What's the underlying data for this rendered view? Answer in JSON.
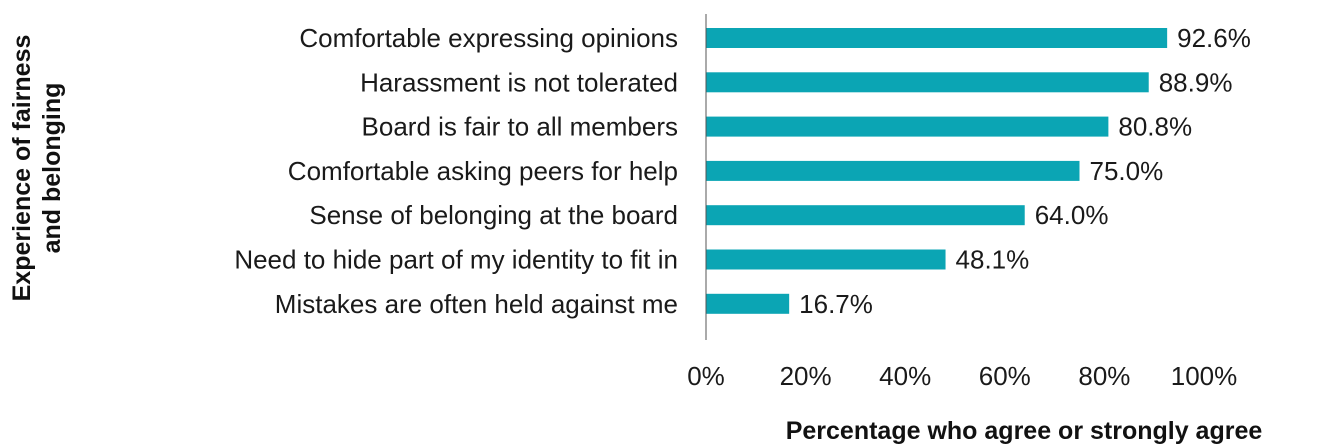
{
  "chart_data": {
    "type": "bar",
    "orientation": "horizontal",
    "categories": [
      "Comfortable expressing opinions",
      "Harassment is not tolerated",
      "Board is fair to all members",
      "Comfortable asking peers for help",
      "Sense of belonging at the board",
      "Need to hide part of my identity to fit in",
      "Mistakes are often held against me"
    ],
    "values": [
      92.6,
      88.9,
      80.8,
      75.0,
      64.0,
      48.1,
      16.7
    ],
    "value_labels": [
      "92.6%",
      "88.9%",
      "80.8%",
      "75.0%",
      "64.0%",
      "48.1%",
      "16.7%"
    ],
    "xlabel": "Percentage who agree or strongly agree",
    "ylabel_lines": [
      "Experience of fairness",
      "and belonging"
    ],
    "xlim": [
      0,
      100
    ],
    "x_ticks": [
      0,
      20,
      40,
      60,
      80,
      100
    ],
    "x_tick_labels": [
      "0%",
      "20%",
      "40%",
      "60%",
      "80%",
      "100%"
    ],
    "grid": false,
    "legend": "none",
    "bar_color": "#0ba5b4"
  }
}
